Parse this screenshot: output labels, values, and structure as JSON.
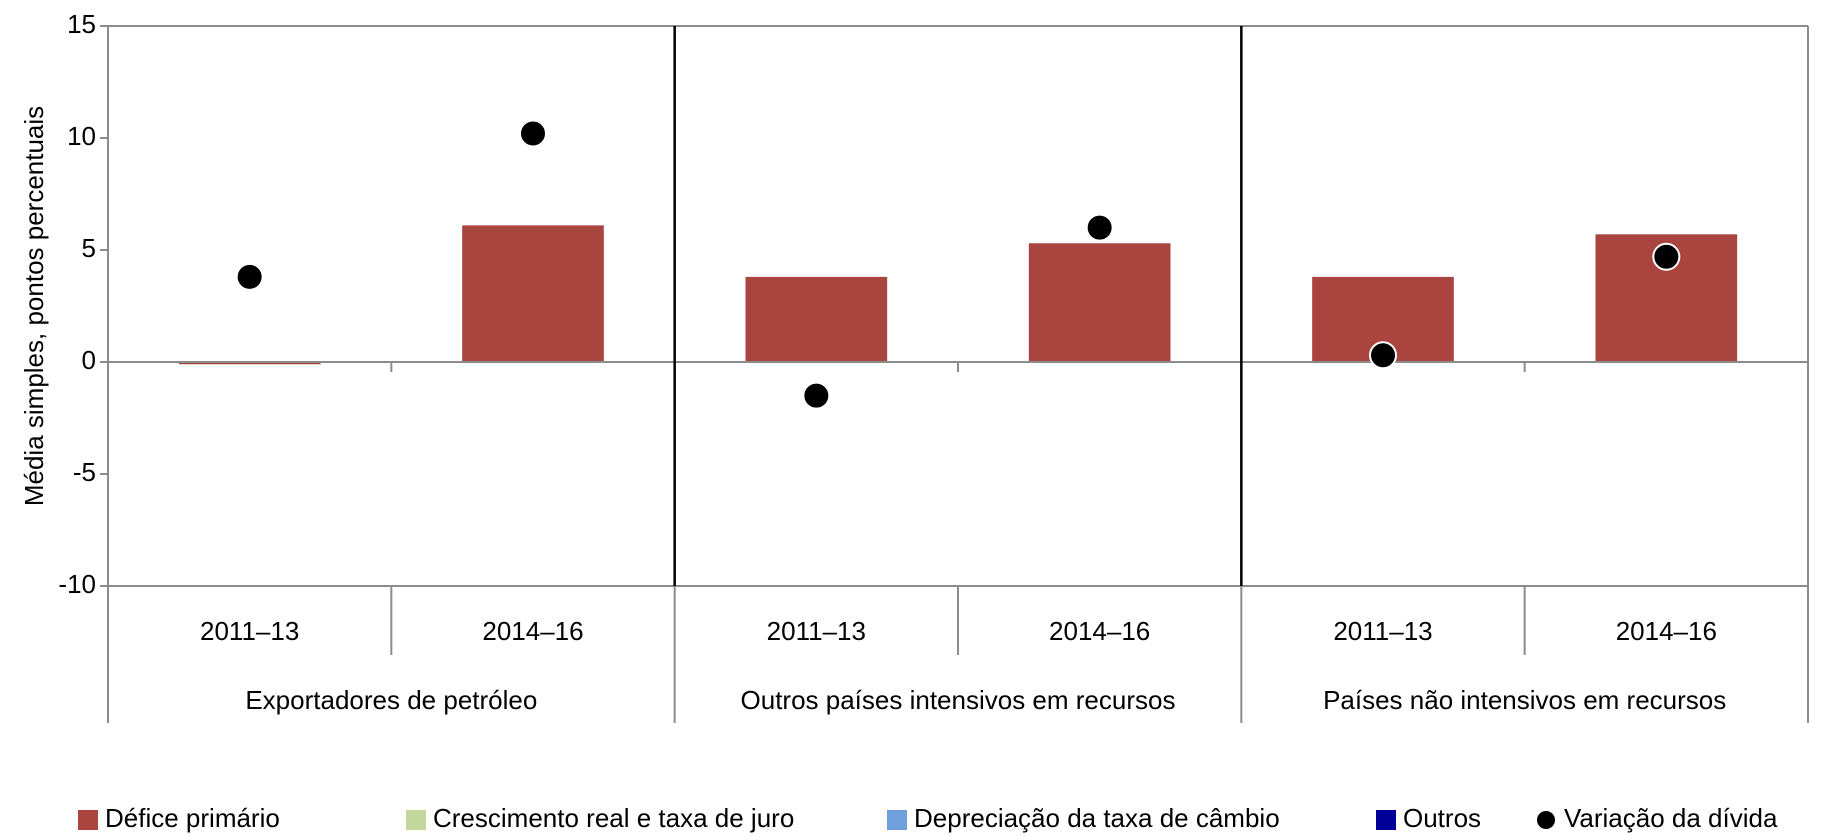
{
  "chart_data": {
    "type": "bar",
    "stacked": true,
    "ylabel": "Média simples, pontos percentuais",
    "groups": [
      "Exportadores de petróleo",
      "Outros países intensivos em recursos",
      "Países não intensivos em recursos"
    ],
    "categories": [
      "2011–13",
      "2014–16",
      "2011–13",
      "2014–16",
      "2011–13",
      "2014–16"
    ],
    "series": [
      {
        "name": "Défice primário",
        "color": "#a9443f",
        "values": [
          -0.1,
          6.1,
          3.8,
          5.3,
          3.8,
          5.7
        ]
      },
      {
        "name": "Crescimento real e taxa de juro",
        "color": "#c3d69b",
        "values": [
          null,
          null,
          null,
          null,
          null,
          null
        ]
      },
      {
        "name": "Depreciação da taxa de câmbio",
        "color": "#6fa0dc",
        "values": [
          null,
          null,
          null,
          null,
          null,
          null
        ]
      },
      {
        "name": "Outros",
        "color": "#000099",
        "values": [
          null,
          null,
          null,
          null,
          null,
          null
        ]
      },
      {
        "name": "Variação da dívida",
        "type": "scatter",
        "color": "#000000",
        "values": [
          3.8,
          10.2,
          -1.5,
          6.0,
          0.3,
          4.7
        ]
      }
    ],
    "ylim": [
      -10,
      15
    ],
    "yticks": [
      -10,
      -5,
      0,
      5,
      10,
      15
    ],
    "legend": "bottom"
  }
}
